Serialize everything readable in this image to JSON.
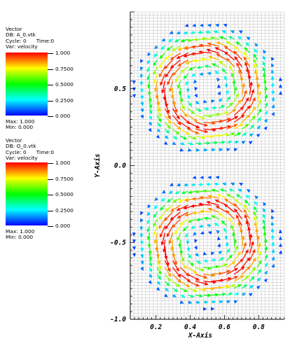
{
  "legends": [
    {
      "plot_type": "Vector",
      "db": "DB: A_0.vtk",
      "cycle": "Cycle: 0",
      "time": "Time:0",
      "var": "Var: velocity",
      "ticks": [
        "1.000",
        "0.7500",
        "0.5000",
        "0.2500",
        "0.000"
      ],
      "max": "Max:  1.000",
      "min": "Min:  0.000"
    },
    {
      "plot_type": "Vector",
      "db": "DB: O_0.vtk",
      "cycle": "Cycle: 0",
      "time": "Time:0",
      "var": "Var: velocity",
      "ticks": [
        "1.000",
        "0.7500",
        "0.5000",
        "0.2500",
        "0.000"
      ],
      "max": "Max:  1.000",
      "min": "Min:  0.000"
    }
  ],
  "chart_data": {
    "type": "vector-field",
    "xlabel": "X-Axis",
    "ylabel": "Y-Axis",
    "xlim": [
      0.05,
      0.95
    ],
    "ylim": [
      -1.0,
      1.0
    ],
    "xticks": [
      "0.2",
      "0.4",
      "0.6",
      "0.8"
    ],
    "yticks": [
      "0.5",
      "0.0",
      "-0.5",
      "-1.0"
    ],
    "grid": true,
    "colormap": [
      "#0000ff",
      "#00ffff",
      "#00ff00",
      "#ffff00",
      "#ff0000"
    ],
    "vortices": [
      {
        "center": [
          0.5,
          0.5
        ],
        "rotation": "counterclockwise",
        "peak_radius": 0.25
      },
      {
        "center": [
          0.5,
          -0.5
        ],
        "rotation": "counterclockwise",
        "peak_radius": 0.25
      }
    ],
    "value_range": [
      0.0,
      1.0
    ]
  }
}
